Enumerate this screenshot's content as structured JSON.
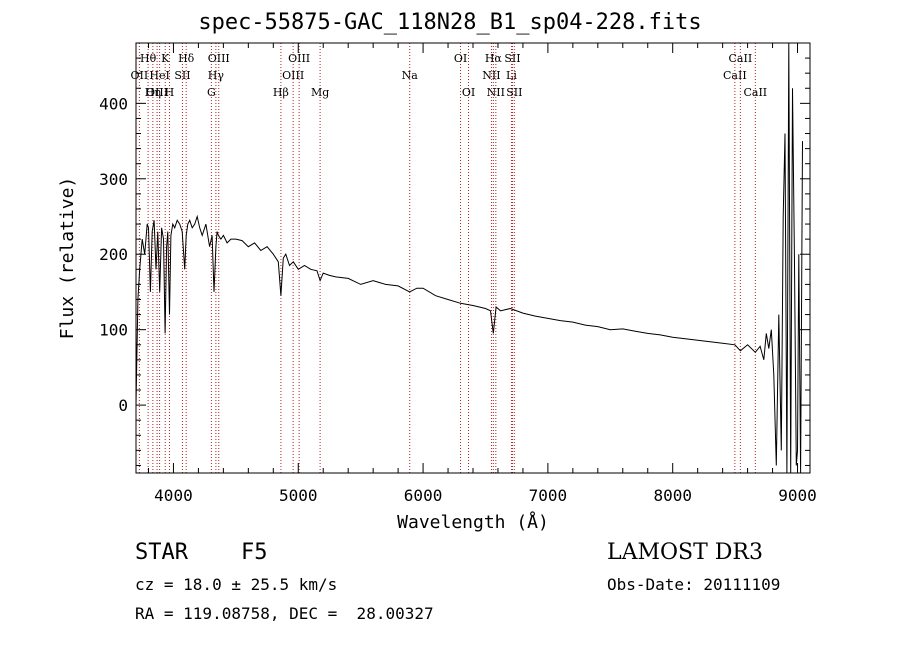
{
  "chart_data": {
    "type": "line",
    "title": "spec-55875-GAC_118N28_B1_sp04-228.fits",
    "xlabel": "Wavelength (Å)",
    "ylabel": "Flux (relative)",
    "xlim": [
      3700,
      9100
    ],
    "ylim": [
      -90,
      480
    ],
    "xticks": [
      4000,
      5000,
      6000,
      7000,
      8000,
      9000
    ],
    "yticks": [
      0,
      100,
      200,
      300,
      400
    ],
    "xtick_labels": [
      "4000",
      "5000",
      "6000",
      "7000",
      "8000",
      "9000"
    ],
    "ytick_labels": [
      "0",
      "100",
      "200",
      "300",
      "400"
    ],
    "series": [
      {
        "name": "spectrum",
        "x": [
          3700,
          3715,
          3730,
          3750,
          3770,
          3790,
          3800,
          3815,
          3830,
          3845,
          3860,
          3875,
          3890,
          3905,
          3920,
          3933,
          3945,
          3955,
          3968,
          3980,
          3995,
          4010,
          4030,
          4050,
          4070,
          4090,
          4102,
          4115,
          4130,
          4150,
          4170,
          4190,
          4210,
          4230,
          4260,
          4290,
          4310,
          4325,
          4340,
          4350,
          4360,
          4380,
          4400,
          4430,
          4460,
          4500,
          4550,
          4600,
          4650,
          4700,
          4750,
          4800,
          4840,
          4861,
          4880,
          4900,
          4930,
          4960,
          5000,
          5050,
          5100,
          5150,
          5175,
          5200,
          5250,
          5300,
          5400,
          5500,
          5600,
          5700,
          5800,
          5893,
          5950,
          6000,
          6100,
          6200,
          6300,
          6400,
          6500,
          6540,
          6563,
          6585,
          6620,
          6700,
          6800,
          6900,
          7000,
          7100,
          7200,
          7300,
          7400,
          7500,
          7600,
          7700,
          7800,
          7900,
          8000,
          8100,
          8200,
          8300,
          8400,
          8498,
          8542,
          8600,
          8662,
          8700,
          8730,
          8750,
          8770,
          8790,
          8810,
          8830,
          8850,
          8870,
          8885,
          8900,
          8915,
          8930,
          8945,
          8960,
          8975,
          8990,
          9000,
          9010,
          9025,
          9040
        ],
        "y": [
          0,
          140,
          180,
          220,
          200,
          240,
          235,
          150,
          230,
          245,
          180,
          230,
          150,
          235,
          220,
          95,
          210,
          230,
          120,
          225,
          240,
          235,
          245,
          240,
          230,
          180,
          225,
          240,
          245,
          235,
          240,
          250,
          235,
          225,
          240,
          210,
          225,
          150,
          210,
          230,
          225,
          220,
          225,
          215,
          220,
          220,
          218,
          210,
          215,
          205,
          210,
          200,
          190,
          145,
          195,
          200,
          185,
          190,
          180,
          185,
          180,
          178,
          165,
          175,
          172,
          170,
          168,
          160,
          165,
          160,
          158,
          150,
          155,
          155,
          145,
          140,
          135,
          132,
          128,
          125,
          95,
          130,
          125,
          128,
          122,
          118,
          115,
          112,
          110,
          106,
          104,
          100,
          101,
          98,
          95,
          93,
          90,
          88,
          86,
          84,
          82,
          80,
          72,
          80,
          70,
          78,
          60,
          95,
          75,
          100,
          40,
          -80,
          120,
          -60,
          250,
          360,
          -90,
          480,
          -90,
          420,
          200,
          -80,
          -60,
          200,
          -90,
          350
        ]
      }
    ],
    "line_annotations": [
      {
        "label": "Hθ",
        "x": 3797,
        "row": 1
      },
      {
        "label": "OII",
        "x": 3727,
        "row": 2
      },
      {
        "label": "OIII",
        "x": 3869,
        "row": 3
      },
      {
        "label": "Hη",
        "x": 3835,
        "row": 3
      },
      {
        "label": "HeI",
        "x": 3889,
        "row": 2
      },
      {
        "label": "K",
        "x": 3934,
        "row": 1
      },
      {
        "label": "SII",
        "x": 4072,
        "row": 2
      },
      {
        "label": "H",
        "x": 3968,
        "row": 3
      },
      {
        "label": "Hδ",
        "x": 4102,
        "row": 1
      },
      {
        "label": "OIII",
        "x": 4363,
        "row": 1
      },
      {
        "label": "Hγ",
        "x": 4340,
        "row": 2
      },
      {
        "label": "G",
        "x": 4304,
        "row": 3
      },
      {
        "label": "OIII",
        "x": 5007,
        "row": 1
      },
      {
        "label": "OIII",
        "x": 4959,
        "row": 2
      },
      {
        "label": "Hβ",
        "x": 4861,
        "row": 3
      },
      {
        "label": "Mg",
        "x": 5175,
        "row": 3
      },
      {
        "label": "Na",
        "x": 5893,
        "row": 2
      },
      {
        "label": "OI",
        "x": 6300,
        "row": 1
      },
      {
        "label": "OI",
        "x": 6364,
        "row": 3
      },
      {
        "label": "Hα",
        "x": 6563,
        "row": 1
      },
      {
        "label": "SII",
        "x": 6716,
        "row": 1
      },
      {
        "label": "NII",
        "x": 6548,
        "row": 2
      },
      {
        "label": "Li",
        "x": 6708,
        "row": 2
      },
      {
        "label": "NII",
        "x": 6583,
        "row": 3
      },
      {
        "label": "SII",
        "x": 6731,
        "row": 3
      },
      {
        "label": "CaII",
        "x": 8542,
        "row": 1
      },
      {
        "label": "CaII",
        "x": 8498,
        "row": 2
      },
      {
        "label": "CaII",
        "x": 8662,
        "row": 3
      }
    ],
    "line_color": "#000000",
    "annotation_color": "#b22222"
  },
  "info": {
    "obj_class": "STAR    F5",
    "survey": "LAMOST DR3",
    "cz": "cz = 18.0 ± 25.5 km/s",
    "obs_date": "Obs-Date: 20111109",
    "coords": "RA = 119.08758, DEC =  28.00327"
  }
}
